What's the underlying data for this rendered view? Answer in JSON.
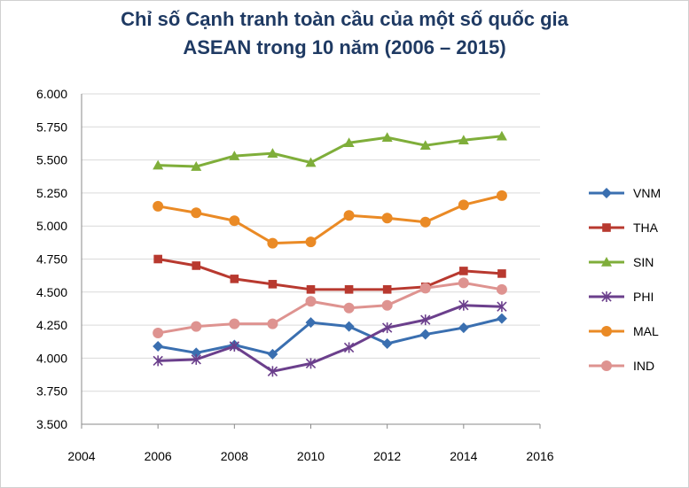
{
  "chart_data": {
    "type": "line",
    "title": "Chỉ số Cạnh tranh toàn cầu của một số quốc gia",
    "subtitle": "ASEAN trong 10 năm (2006 – 2015)",
    "xlabel": "",
    "ylabel": "",
    "x": [
      2006,
      2007,
      2008,
      2009,
      2010,
      2011,
      2012,
      2013,
      2014,
      2015
    ],
    "xlim": [
      2004,
      2016
    ],
    "ylim": [
      3.5,
      6.0
    ],
    "x_ticks": [
      "2004",
      "2006",
      "2008",
      "2010",
      "2012",
      "2014",
      "2016"
    ],
    "y_ticks": [
      "3.500",
      "3.750",
      "4.000",
      "4.250",
      "4.500",
      "4.750",
      "5.000",
      "5.250",
      "5.500",
      "5.750",
      "6.000"
    ],
    "grid": "horizontal",
    "legend_position": "right",
    "series": [
      {
        "name": "VNM",
        "color": "#3a6fb0",
        "marker": "diamond",
        "values": [
          4.09,
          4.04,
          4.1,
          4.03,
          4.27,
          4.24,
          4.11,
          4.18,
          4.23,
          4.3
        ]
      },
      {
        "name": "THA",
        "color": "#b8392f",
        "marker": "square",
        "values": [
          4.75,
          4.7,
          4.6,
          4.56,
          4.52,
          4.52,
          4.52,
          4.54,
          4.66,
          4.64
        ]
      },
      {
        "name": "SIN",
        "color": "#7fae3a",
        "marker": "triangle",
        "values": [
          5.46,
          5.45,
          5.53,
          5.55,
          5.48,
          5.63,
          5.67,
          5.61,
          5.65,
          5.68
        ]
      },
      {
        "name": "PHI",
        "color": "#6b3f8c",
        "marker": "star",
        "values": [
          3.98,
          3.99,
          4.09,
          3.9,
          3.96,
          4.08,
          4.23,
          4.29,
          4.4,
          4.39
        ]
      },
      {
        "name": "MAL",
        "color": "#ea8a25",
        "marker": "circle",
        "values": [
          5.15,
          5.1,
          5.04,
          4.87,
          4.88,
          5.08,
          5.06,
          5.03,
          5.16,
          5.23
        ]
      },
      {
        "name": "IND",
        "color": "#de9390",
        "marker": "circle",
        "values": [
          4.19,
          4.24,
          4.26,
          4.26,
          4.43,
          4.38,
          4.4,
          4.53,
          4.57,
          4.52
        ]
      }
    ]
  }
}
